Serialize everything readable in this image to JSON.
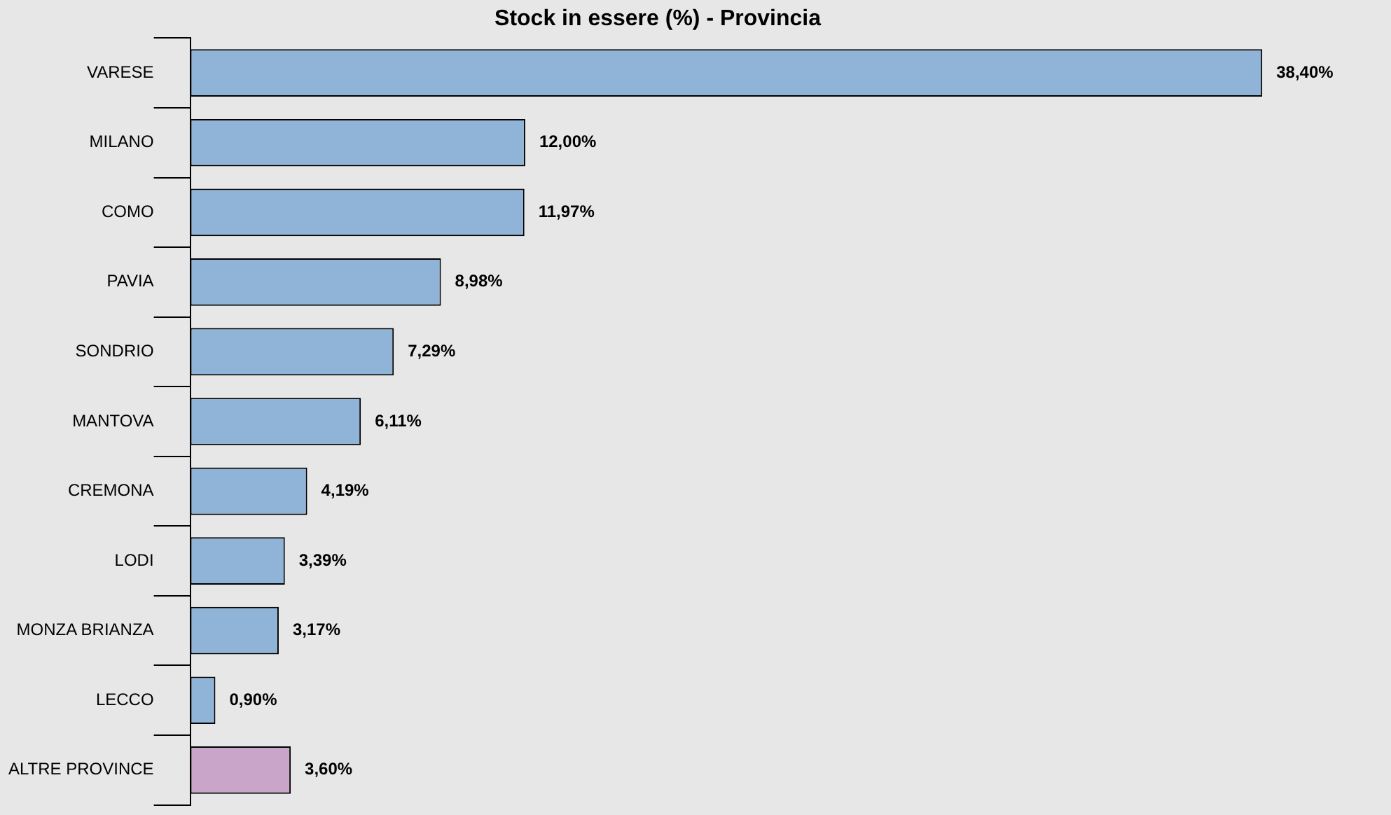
{
  "chart_data": {
    "type": "bar",
    "orientation": "horizontal",
    "title": "Stock in essere (%) - Provincia",
    "categories": [
      "VARESE",
      "MILANO",
      "COMO",
      "PAVIA",
      "SONDRIO",
      "MANTOVA",
      "CREMONA",
      "LODI",
      "MONZA BRIANZA",
      "LECCO",
      "ALTRE PROVINCE"
    ],
    "values": [
      38.4,
      12.0,
      11.97,
      8.98,
      7.29,
      6.11,
      4.19,
      3.39,
      3.17,
      0.9,
      3.6
    ],
    "colors": [
      "#8fb4d8",
      "#8fb4d8",
      "#8fb4d8",
      "#8fb4d8",
      "#8fb4d8",
      "#8fb4d8",
      "#8fb4d8",
      "#8fb4d8",
      "#8fb4d8",
      "#8fb4d8",
      "#c9a6c9"
    ],
    "value_labels": [
      "38,40%",
      "12,00%",
      "11,97%",
      "8,98%",
      "7,29%",
      "6,11%",
      "4,19%",
      "3,39%",
      "3,17%",
      "0,90%",
      "3,60%"
    ],
    "legend": false,
    "grid": false
  }
}
